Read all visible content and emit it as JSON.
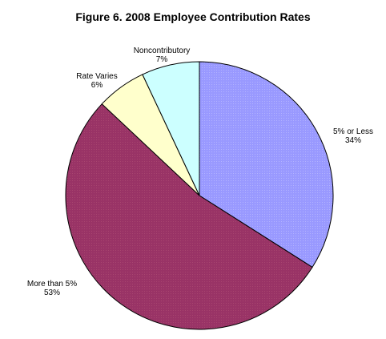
{
  "chart_data": {
    "type": "pie",
    "title": "Figure 6. 2008 Employee Contribution Rates",
    "start_angle_deg": 0,
    "direction": "clockwise",
    "slices": [
      {
        "label": "5% or Less",
        "value_label": "34%",
        "value": 34,
        "color": "#9999ff",
        "pattern": "dotted"
      },
      {
        "label": "More than 5%",
        "value_label": "53%",
        "value": 53,
        "color": "#993366",
        "pattern": "dotted"
      },
      {
        "label": "Rate Varies",
        "value_label": "6%",
        "value": 6,
        "color": "#ffffcc",
        "pattern": "none"
      },
      {
        "label": "Noncontributory",
        "value_label": "7%",
        "value": 7,
        "color": "#ccffff",
        "pattern": "none"
      }
    ],
    "legend": "none",
    "outline_color": "#000000"
  }
}
